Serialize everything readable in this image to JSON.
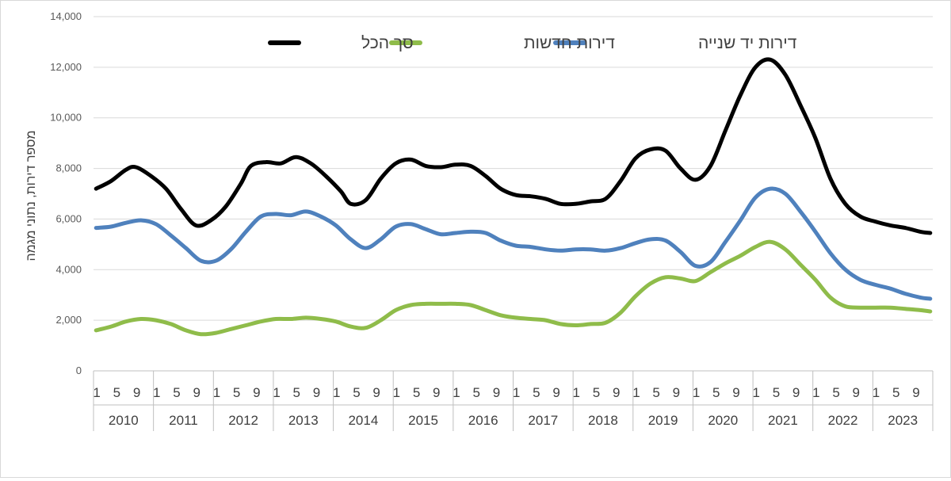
{
  "chart_data": {
    "type": "line",
    "ylabel": "מספר דירות, נתוני מגמה",
    "ylim": [
      0,
      14000
    ],
    "yticks": [
      "0",
      "2,000",
      "4,000",
      "6,000",
      "8,000",
      "10,000",
      "12,000",
      "14,000"
    ],
    "years": [
      "2010",
      "2011",
      "2012",
      "2013",
      "2014",
      "2015",
      "2016",
      "2017",
      "2018",
      "2019",
      "2020",
      "2021",
      "2022",
      "2023"
    ],
    "month_ticks": [
      "1",
      "5",
      "9"
    ],
    "legend_position": "top",
    "grid": true,
    "series": [
      {
        "name": "סך הכל",
        "color": "#000000",
        "points": [
          [
            0,
            7200
          ],
          [
            3,
            7500
          ],
          [
            6,
            7950
          ],
          [
            8,
            8050
          ],
          [
            11,
            7700
          ],
          [
            14,
            7200
          ],
          [
            17,
            6400
          ],
          [
            20,
            5750
          ],
          [
            23,
            5950
          ],
          [
            26,
            6500
          ],
          [
            29,
            7400
          ],
          [
            31,
            8100
          ],
          [
            34,
            8250
          ],
          [
            37,
            8200
          ],
          [
            40,
            8450
          ],
          [
            43,
            8200
          ],
          [
            46,
            7700
          ],
          [
            49,
            7100
          ],
          [
            51,
            6600
          ],
          [
            54,
            6750
          ],
          [
            57,
            7600
          ],
          [
            60,
            8200
          ],
          [
            63,
            8350
          ],
          [
            66,
            8100
          ],
          [
            69,
            8050
          ],
          [
            72,
            8150
          ],
          [
            75,
            8100
          ],
          [
            78,
            7700
          ],
          [
            81,
            7200
          ],
          [
            84,
            6950
          ],
          [
            87,
            6900
          ],
          [
            90,
            6800
          ],
          [
            93,
            6600
          ],
          [
            96,
            6600
          ],
          [
            99,
            6700
          ],
          [
            102,
            6800
          ],
          [
            105,
            7500
          ],
          [
            108,
            8400
          ],
          [
            111,
            8750
          ],
          [
            114,
            8700
          ],
          [
            117,
            8000
          ],
          [
            120,
            7550
          ],
          [
            123,
            8100
          ],
          [
            126,
            9500
          ],
          [
            129,
            10900
          ],
          [
            132,
            12000
          ],
          [
            135,
            12300
          ],
          [
            138,
            11700
          ],
          [
            141,
            10500
          ],
          [
            144,
            9200
          ],
          [
            147,
            7600
          ],
          [
            150,
            6600
          ],
          [
            153,
            6100
          ],
          [
            156,
            5900
          ],
          [
            159,
            5750
          ],
          [
            162,
            5650
          ],
          [
            165,
            5500
          ],
          [
            167,
            5450
          ]
        ]
      },
      {
        "name": "דירות חדשות",
        "color": "#8fbc4a",
        "points": [
          [
            0,
            1600
          ],
          [
            3,
            1750
          ],
          [
            6,
            1950
          ],
          [
            9,
            2050
          ],
          [
            12,
            2000
          ],
          [
            15,
            1850
          ],
          [
            18,
            1600
          ],
          [
            21,
            1450
          ],
          [
            24,
            1500
          ],
          [
            27,
            1650
          ],
          [
            30,
            1800
          ],
          [
            33,
            1950
          ],
          [
            36,
            2050
          ],
          [
            39,
            2050
          ],
          [
            42,
            2100
          ],
          [
            45,
            2050
          ],
          [
            48,
            1950
          ],
          [
            51,
            1750
          ],
          [
            54,
            1700
          ],
          [
            57,
            2000
          ],
          [
            60,
            2400
          ],
          [
            63,
            2600
          ],
          [
            66,
            2650
          ],
          [
            69,
            2650
          ],
          [
            72,
            2650
          ],
          [
            75,
            2600
          ],
          [
            78,
            2400
          ],
          [
            81,
            2200
          ],
          [
            84,
            2100
          ],
          [
            87,
            2050
          ],
          [
            90,
            2000
          ],
          [
            93,
            1850
          ],
          [
            96,
            1800
          ],
          [
            99,
            1850
          ],
          [
            102,
            1900
          ],
          [
            105,
            2300
          ],
          [
            108,
            2950
          ],
          [
            111,
            3450
          ],
          [
            114,
            3700
          ],
          [
            117,
            3650
          ],
          [
            120,
            3550
          ],
          [
            123,
            3900
          ],
          [
            126,
            4250
          ],
          [
            129,
            4550
          ],
          [
            132,
            4900
          ],
          [
            135,
            5100
          ],
          [
            138,
            4800
          ],
          [
            141,
            4200
          ],
          [
            144,
            3600
          ],
          [
            147,
            2900
          ],
          [
            150,
            2550
          ],
          [
            153,
            2500
          ],
          [
            156,
            2500
          ],
          [
            159,
            2500
          ],
          [
            162,
            2450
          ],
          [
            165,
            2400
          ],
          [
            167,
            2350
          ]
        ]
      },
      {
        "name": "דירות יד שנייה",
        "color": "#4f81bd",
        "points": [
          [
            0,
            5650
          ],
          [
            3,
            5700
          ],
          [
            6,
            5850
          ],
          [
            9,
            5950
          ],
          [
            12,
            5800
          ],
          [
            15,
            5350
          ],
          [
            18,
            4850
          ],
          [
            21,
            4350
          ],
          [
            24,
            4350
          ],
          [
            27,
            4800
          ],
          [
            30,
            5500
          ],
          [
            33,
            6100
          ],
          [
            36,
            6200
          ],
          [
            39,
            6150
          ],
          [
            42,
            6300
          ],
          [
            45,
            6100
          ],
          [
            48,
            5750
          ],
          [
            51,
            5200
          ],
          [
            54,
            4850
          ],
          [
            57,
            5200
          ],
          [
            60,
            5700
          ],
          [
            63,
            5800
          ],
          [
            66,
            5600
          ],
          [
            69,
            5400
          ],
          [
            72,
            5450
          ],
          [
            75,
            5500
          ],
          [
            78,
            5450
          ],
          [
            81,
            5150
          ],
          [
            84,
            4950
          ],
          [
            87,
            4900
          ],
          [
            90,
            4800
          ],
          [
            93,
            4750
          ],
          [
            96,
            4800
          ],
          [
            99,
            4800
          ],
          [
            102,
            4750
          ],
          [
            105,
            4850
          ],
          [
            108,
            5050
          ],
          [
            111,
            5200
          ],
          [
            114,
            5150
          ],
          [
            117,
            4700
          ],
          [
            120,
            4150
          ],
          [
            123,
            4300
          ],
          [
            126,
            5100
          ],
          [
            129,
            5950
          ],
          [
            132,
            6850
          ],
          [
            135,
            7200
          ],
          [
            138,
            7000
          ],
          [
            141,
            6300
          ],
          [
            144,
            5500
          ],
          [
            147,
            4650
          ],
          [
            150,
            4000
          ],
          [
            153,
            3600
          ],
          [
            156,
            3400
          ],
          [
            159,
            3250
          ],
          [
            162,
            3050
          ],
          [
            165,
            2900
          ],
          [
            167,
            2850
          ]
        ]
      }
    ]
  }
}
